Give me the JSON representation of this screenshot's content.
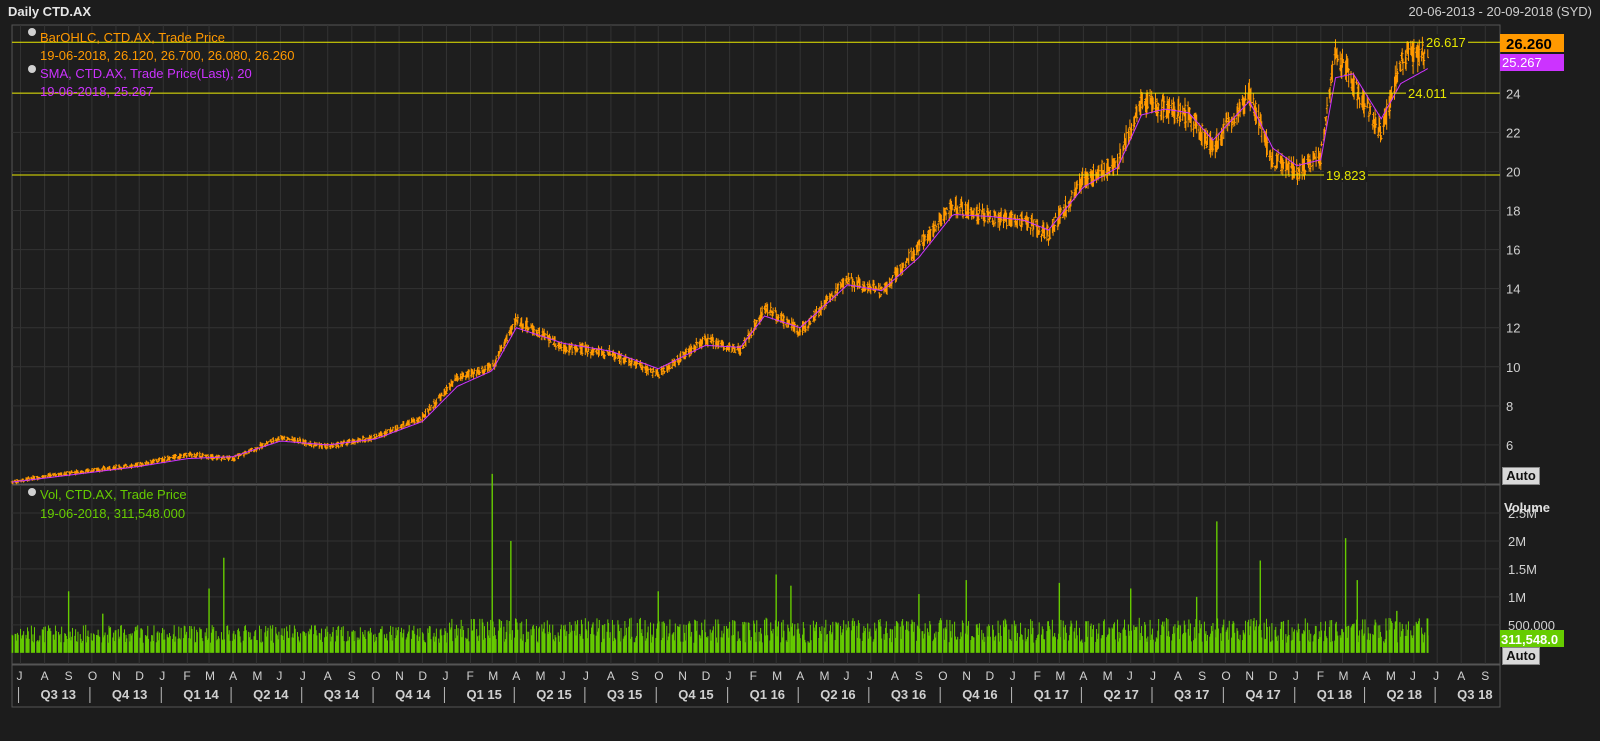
{
  "window": {
    "title": "Daily CTD.AX",
    "date_range": "20-06-2013 - 20-09-2018 (SYD)"
  },
  "legend": {
    "price_series": "BarOHLC, CTD.AX, Trade Price",
    "price_values": "19-06-2018, 26.120, 26.700, 26.080, 26.260",
    "sma_series": "SMA, CTD.AX, Trade Price(Last),  20",
    "sma_values": "19-06-2018, 25.267",
    "vol_series": "Vol, CTD.AX, Trade Price",
    "vol_values": "19-06-2018, 311,548.000"
  },
  "buttons": {
    "auto_price": "Auto",
    "auto_volume": "Auto"
  },
  "colors": {
    "price": "#ff9900",
    "sma": "#cc33ff",
    "volume": "#66cc00",
    "hline": "#e8e800",
    "grid": "#333333"
  },
  "chart_data": [
    {
      "type": "line",
      "title": "Daily CTD.AX",
      "series": [
        {
          "name": "BarOHLC, CTD.AX, Trade Price",
          "kind": "ohlc",
          "color": "#ff9900"
        },
        {
          "name": "SMA, CTD.AX, Trade Price(Last),  20",
          "kind": "sma",
          "color": "#cc33ff"
        }
      ],
      "x": [
        "2013-06-20",
        "2013-08-01",
        "2013-10-01",
        "2013-12-01",
        "2014-02-01",
        "2014-04-01",
        "2014-06-01",
        "2014-08-01",
        "2014-10-01",
        "2014-12-01",
        "2015-01-15",
        "2015-03-01",
        "2015-04-01",
        "2015-06-01",
        "2015-08-01",
        "2015-10-01",
        "2015-12-01",
        "2016-01-15",
        "2016-02-15",
        "2016-04-01",
        "2016-06-01",
        "2016-07-15",
        "2016-09-01",
        "2016-10-15",
        "2016-12-01",
        "2017-01-15",
        "2017-02-15",
        "2017-04-01",
        "2017-05-15",
        "2017-06-15",
        "2017-07-15",
        "2017-08-15",
        "2017-09-15",
        "2017-11-01",
        "2017-12-01",
        "2018-01-01",
        "2018-02-01",
        "2018-02-20",
        "2018-03-15",
        "2018-04-20",
        "2018-05-15",
        "2018-06-19"
      ],
      "values": [
        4.1,
        4.4,
        4.7,
        5.0,
        5.5,
        5.3,
        6.4,
        5.9,
        6.4,
        7.4,
        9.4,
        10.0,
        12.4,
        11.0,
        10.7,
        9.6,
        11.4,
        10.8,
        13.0,
        11.8,
        14.5,
        13.8,
        16.2,
        18.2,
        17.6,
        17.5,
        16.8,
        19.6,
        20.5,
        23.6,
        23.2,
        22.9,
        21.2,
        24.0,
        20.6,
        20.0,
        20.8,
        26.2,
        24.5,
        22.0,
        25.6,
        26.26
      ],
      "sma_values": [
        4.1,
        4.3,
        4.6,
        4.9,
        5.3,
        5.4,
        6.2,
        6.0,
        6.3,
        7.2,
        9.0,
        9.8,
        12.0,
        11.2,
        10.8,
        9.9,
        11.1,
        11.0,
        12.6,
        12.0,
        14.2,
        13.9,
        15.6,
        17.8,
        17.7,
        17.5,
        17.0,
        19.2,
        20.2,
        22.9,
        23.2,
        23.0,
        21.6,
        23.6,
        21.2,
        20.3,
        20.6,
        24.8,
        25.0,
        22.7,
        24.5,
        25.267
      ],
      "ylim": [
        4,
        27.5
      ],
      "yticks": [
        6,
        8,
        10,
        12,
        14,
        16,
        18,
        20,
        22,
        24
      ],
      "last_price": "26.260",
      "last_sma": "25.267",
      "hlines": [
        {
          "value": 26.617,
          "label": "26.617"
        },
        {
          "value": 24.011,
          "label": "24.011"
        },
        {
          "value": 19.823,
          "label": "19.823"
        }
      ],
      "grid": true
    },
    {
      "type": "bar",
      "title": "Volume",
      "series": [
        {
          "name": "Vol, CTD.AX, Trade Price",
          "color": "#66cc00"
        }
      ],
      "spikes_x": [
        "2013-09-01",
        "2013-10-15",
        "2014-03-01",
        "2014-03-20",
        "2015-03-01",
        "2015-03-25",
        "2015-10-01",
        "2016-03-01",
        "2016-03-20",
        "2016-09-01",
        "2016-11-01",
        "2017-03-01",
        "2017-06-01",
        "2017-08-25",
        "2017-09-20",
        "2017-11-15",
        "2018-03-05",
        "2018-03-20",
        "2018-05-10",
        "2018-06-19"
      ],
      "spikes_values": [
        1100000,
        700000,
        1150000,
        1700000,
        3200000,
        2000000,
        1100000,
        1400000,
        1200000,
        1050000,
        1300000,
        1250000,
        1150000,
        1000000,
        2350000,
        1650000,
        2050000,
        1300000,
        750000,
        311548
      ],
      "ylim": [
        -200000,
        3000000
      ],
      "ylabel": "Volume",
      "yticks": [
        500000,
        1000000,
        1500000,
        2000000,
        2500000
      ],
      "ytick_labels": [
        "500,000",
        "1M",
        "1.5M",
        "2M",
        "2.5M"
      ],
      "last_value": "311,548.0"
    }
  ],
  "x_axis": {
    "month_labels": [
      [
        "2013-07-01",
        "J"
      ],
      [
        "2013-08-01",
        "A"
      ],
      [
        "2013-09-01",
        "S"
      ],
      [
        "2013-10-01",
        "O"
      ],
      [
        "2013-11-01",
        "N"
      ],
      [
        "2013-12-01",
        "D"
      ],
      [
        "2014-01-01",
        "J"
      ],
      [
        "2014-02-01",
        "F"
      ],
      [
        "2014-03-01",
        "M"
      ],
      [
        "2014-04-01",
        "A"
      ],
      [
        "2014-05-01",
        "M"
      ],
      [
        "2014-06-01",
        "J"
      ],
      [
        "2014-07-01",
        "J"
      ],
      [
        "2014-08-01",
        "A"
      ],
      [
        "2014-09-01",
        "S"
      ],
      [
        "2014-10-01",
        "O"
      ],
      [
        "2014-11-01",
        "N"
      ],
      [
        "2014-12-01",
        "D"
      ],
      [
        "2015-01-01",
        "J"
      ],
      [
        "2015-02-01",
        "F"
      ],
      [
        "2015-03-01",
        "M"
      ],
      [
        "2015-04-01",
        "A"
      ],
      [
        "2015-05-01",
        "M"
      ],
      [
        "2015-06-01",
        "J"
      ],
      [
        "2015-07-01",
        "J"
      ],
      [
        "2015-08-01",
        "A"
      ],
      [
        "2015-09-01",
        "S"
      ],
      [
        "2015-10-01",
        "O"
      ],
      [
        "2015-11-01",
        "N"
      ],
      [
        "2015-12-01",
        "D"
      ],
      [
        "2016-01-01",
        "J"
      ],
      [
        "2016-02-01",
        "F"
      ],
      [
        "2016-03-01",
        "M"
      ],
      [
        "2016-04-01",
        "A"
      ],
      [
        "2016-05-01",
        "M"
      ],
      [
        "2016-06-01",
        "J"
      ],
      [
        "2016-07-01",
        "J"
      ],
      [
        "2016-08-01",
        "A"
      ],
      [
        "2016-09-01",
        "S"
      ],
      [
        "2016-10-01",
        "O"
      ],
      [
        "2016-11-01",
        "N"
      ],
      [
        "2016-12-01",
        "D"
      ],
      [
        "2017-01-01",
        "J"
      ],
      [
        "2017-02-01",
        "F"
      ],
      [
        "2017-03-01",
        "M"
      ],
      [
        "2017-04-01",
        "A"
      ],
      [
        "2017-05-01",
        "M"
      ],
      [
        "2017-06-01",
        "J"
      ],
      [
        "2017-07-01",
        "J"
      ],
      [
        "2017-08-01",
        "A"
      ],
      [
        "2017-09-01",
        "S"
      ],
      [
        "2017-10-01",
        "O"
      ],
      [
        "2017-11-01",
        "N"
      ],
      [
        "2017-12-01",
        "D"
      ],
      [
        "2018-01-01",
        "J"
      ],
      [
        "2018-02-01",
        "F"
      ],
      [
        "2018-03-01",
        "M"
      ],
      [
        "2018-04-01",
        "A"
      ],
      [
        "2018-05-01",
        "M"
      ],
      [
        "2018-06-01",
        "J"
      ],
      [
        "2018-07-01",
        "J"
      ],
      [
        "2018-08-01",
        "A"
      ],
      [
        "2018-09-01",
        "S"
      ]
    ],
    "quarter_labels": [
      [
        "2013-07-01",
        "Q3 13"
      ],
      [
        "2013-10-01",
        "Q4 13"
      ],
      [
        "2014-01-01",
        "Q1 14"
      ],
      [
        "2014-04-01",
        "Q2 14"
      ],
      [
        "2014-07-01",
        "Q3 14"
      ],
      [
        "2014-10-01",
        "Q4 14"
      ],
      [
        "2015-01-01",
        "Q1 15"
      ],
      [
        "2015-04-01",
        "Q2 15"
      ],
      [
        "2015-07-01",
        "Q3 15"
      ],
      [
        "2015-10-01",
        "Q4 15"
      ],
      [
        "2016-01-01",
        "Q1 16"
      ],
      [
        "2016-04-01",
        "Q2 16"
      ],
      [
        "2016-07-01",
        "Q3 16"
      ],
      [
        "2016-10-01",
        "Q4 16"
      ],
      [
        "2017-01-01",
        "Q1 17"
      ],
      [
        "2017-04-01",
        "Q2 17"
      ],
      [
        "2017-07-01",
        "Q3 17"
      ],
      [
        "2017-10-01",
        "Q4 17"
      ],
      [
        "2018-01-01",
        "Q1 18"
      ],
      [
        "2018-04-01",
        "Q2 18"
      ],
      [
        "2018-07-01",
        "Q3 18"
      ]
    ]
  }
}
